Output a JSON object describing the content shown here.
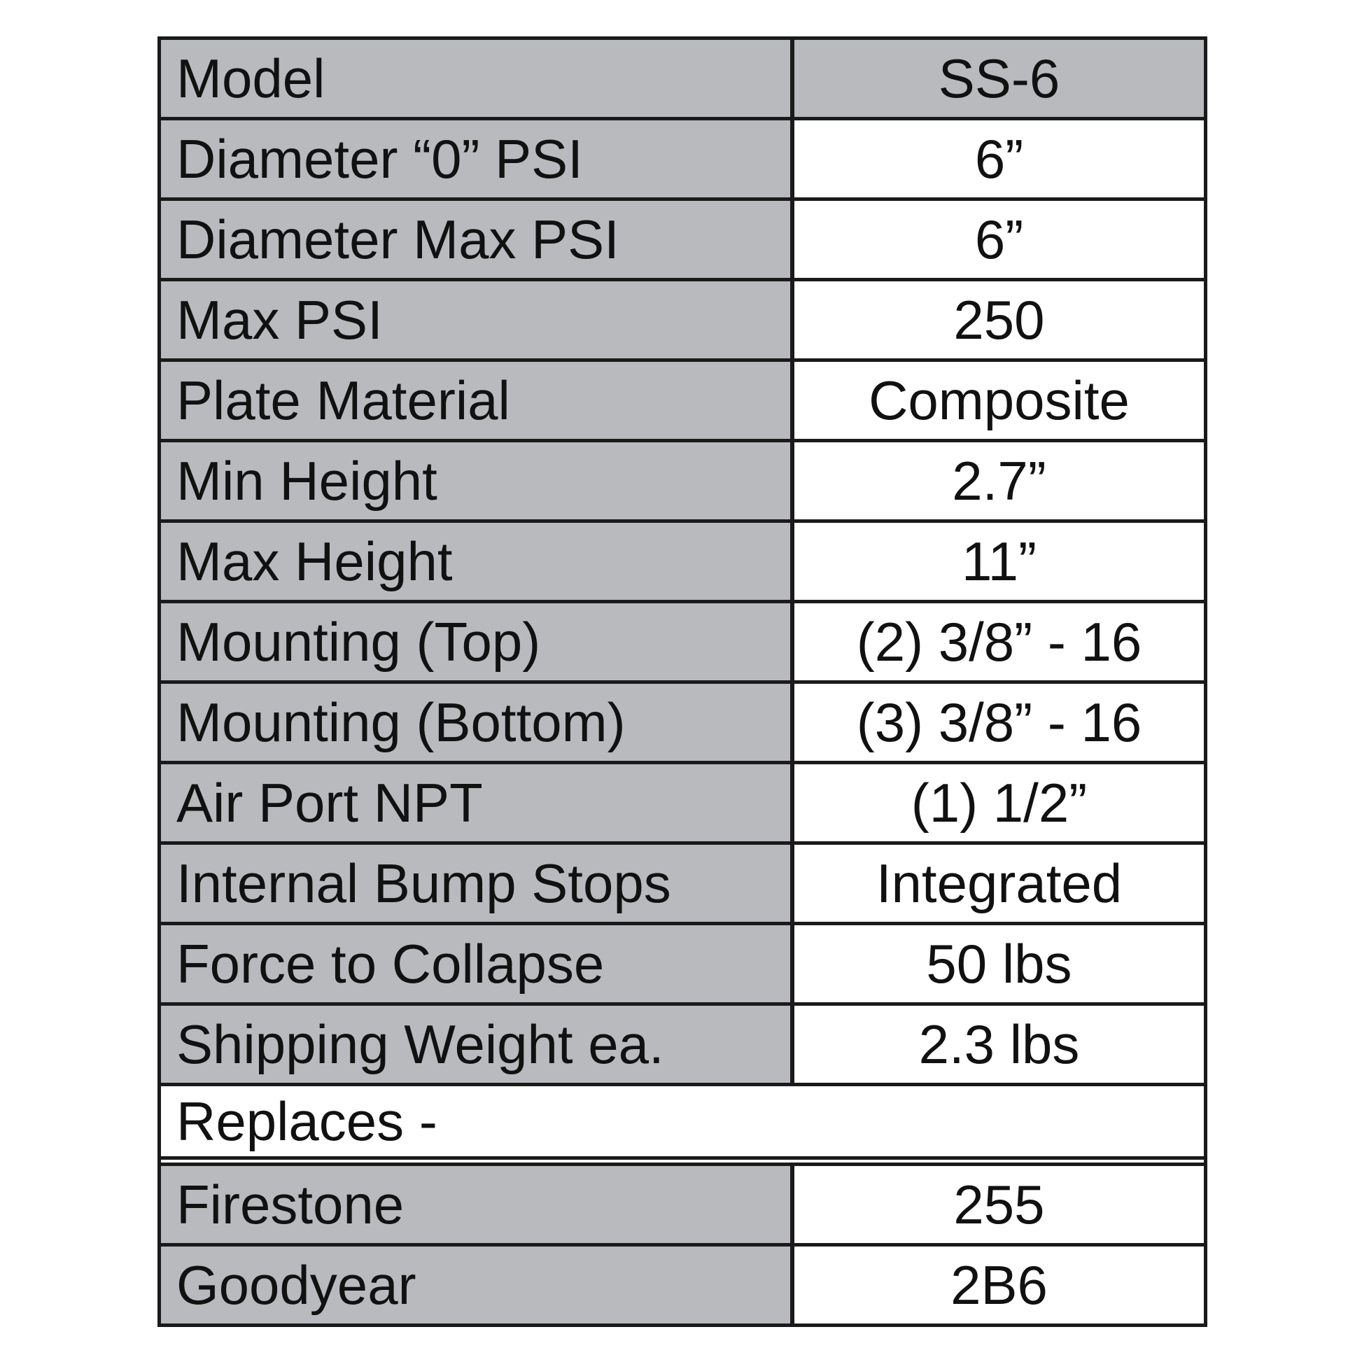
{
  "specs": [
    {
      "label": "Model",
      "value": "SS-6"
    },
    {
      "label": "Diameter “0” PSI",
      "value": "6”"
    },
    {
      "label": "Diameter Max PSI",
      "value": "6”"
    },
    {
      "label": "Max PSI",
      "value": "250"
    },
    {
      "label": "Plate Material",
      "value": "Composite"
    },
    {
      "label": "Min Height",
      "value": "2.7”"
    },
    {
      "label": "Max Height",
      "value": "11”"
    },
    {
      "label": "Mounting (Top)",
      "value": "(2) 3/8” - 16"
    },
    {
      "label": "Mounting (Bottom)",
      "value": "(3) 3/8” - 16"
    },
    {
      "label": "Air Port NPT",
      "value": "(1) 1/2”"
    },
    {
      "label": "Internal Bump Stops",
      "value": "Integrated"
    },
    {
      "label": "Force to Collapse",
      "value": "50 lbs"
    },
    {
      "label": "Shipping Weight ea.",
      "value": "2.3 lbs"
    }
  ],
  "replaces_label": "Replaces -",
  "replacements": [
    {
      "label": "Firestone",
      "value": "255"
    },
    {
      "label": "Goodyear",
      "value": "2B6"
    }
  ],
  "colors": {
    "label_bg": "#b9babd",
    "border": "#1a1a1a"
  }
}
